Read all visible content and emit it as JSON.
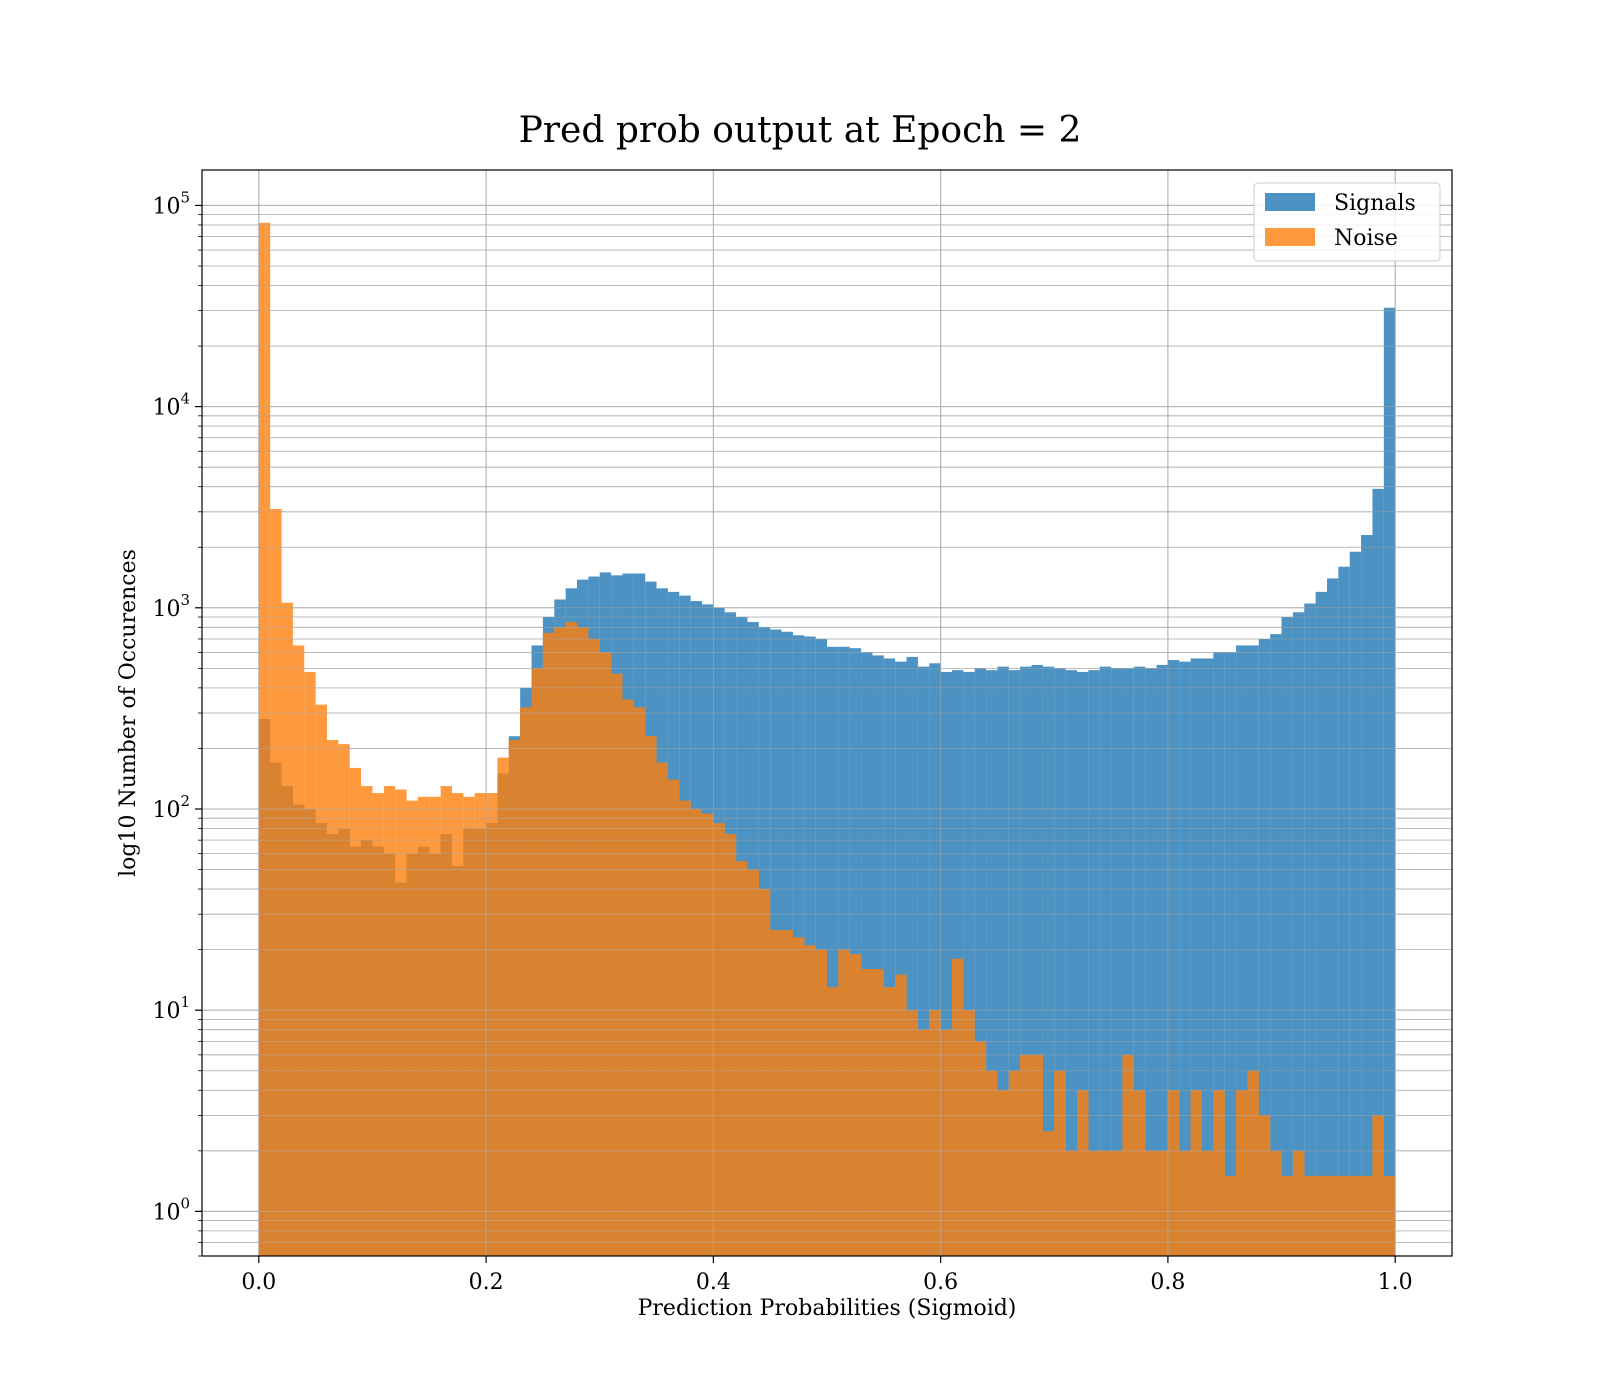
{
  "chart_data": {
    "type": "bar",
    "title": "Pred prob output at Epoch = 2",
    "xlabel": "Prediction Probabilities (Sigmoid)",
    "ylabel": "log10 Number of Occurences",
    "x_scale": "linear",
    "y_scale": "log",
    "xlim": [
      -0.05,
      1.05
    ],
    "ylim": [
      0.6,
      150000
    ],
    "x_ticks": [
      0.0,
      0.2,
      0.4,
      0.6,
      0.8,
      1.0
    ],
    "x_tick_labels": [
      "0.0",
      "0.2",
      "0.4",
      "0.6",
      "0.8",
      "1.0"
    ],
    "y_ticks": [
      1,
      10,
      100,
      1000,
      10000,
      100000
    ],
    "y_tick_bases": [
      "10",
      "10",
      "10",
      "10",
      "10",
      "10"
    ],
    "y_tick_exponents": [
      "0",
      "1",
      "2",
      "3",
      "4",
      "5"
    ],
    "grid": true,
    "legend_position": "top-right",
    "bins": {
      "start": 0.0,
      "end": 1.0,
      "count": 100
    },
    "colors": {
      "signals": "#1f77b4",
      "noise": "#ff7f0e",
      "overlap": "#d9822f"
    },
    "series": [
      {
        "name": "Signals",
        "color": "#1f77b4",
        "values": [
          280,
          170,
          130,
          105,
          100,
          85,
          75,
          80,
          65,
          70,
          65,
          60,
          43,
          60,
          65,
          60,
          75,
          52,
          80,
          80,
          85,
          150,
          230,
          400,
          650,
          900,
          1100,
          1250,
          1380,
          1430,
          1500,
          1450,
          1480,
          1480,
          1350,
          1250,
          1200,
          1150,
          1080,
          1040,
          1000,
          950,
          900,
          850,
          800,
          780,
          760,
          730,
          720,
          700,
          640,
          640,
          630,
          600,
          580,
          560,
          540,
          570,
          510,
          530,
          480,
          490,
          480,
          500,
          490,
          510,
          490,
          510,
          520,
          510,
          500,
          490,
          480,
          490,
          510,
          500,
          500,
          510,
          500,
          520,
          550,
          540,
          560,
          560,
          600,
          600,
          650,
          650,
          700,
          740,
          900,
          950,
          1050,
          1200,
          1400,
          1600,
          1900,
          2300,
          3900,
          31000
        ]
      },
      {
        "name": "Noise",
        "color": "#ff7f0e",
        "values": [
          82000,
          3100,
          1060,
          650,
          480,
          330,
          220,
          210,
          160,
          130,
          120,
          130,
          125,
          110,
          115,
          115,
          130,
          120,
          115,
          120,
          120,
          180,
          220,
          320,
          500,
          750,
          800,
          850,
          800,
          700,
          600,
          470,
          350,
          320,
          230,
          170,
          140,
          110,
          100,
          95,
          85,
          75,
          55,
          50,
          40,
          25,
          25,
          23,
          21,
          20,
          13,
          20,
          19,
          16,
          16,
          13,
          15,
          10,
          8,
          10,
          8,
          18,
          10,
          7,
          5,
          4,
          5,
          6,
          6,
          2.5,
          5,
          2,
          4,
          2,
          2,
          2,
          6,
          4,
          2,
          2,
          4,
          2,
          4,
          2,
          4,
          1.5,
          4,
          5,
          3,
          2,
          1.5,
          2,
          1.5,
          1.5,
          1.5,
          1.5,
          1.5,
          1.5,
          3,
          1.5
        ]
      }
    ]
  }
}
